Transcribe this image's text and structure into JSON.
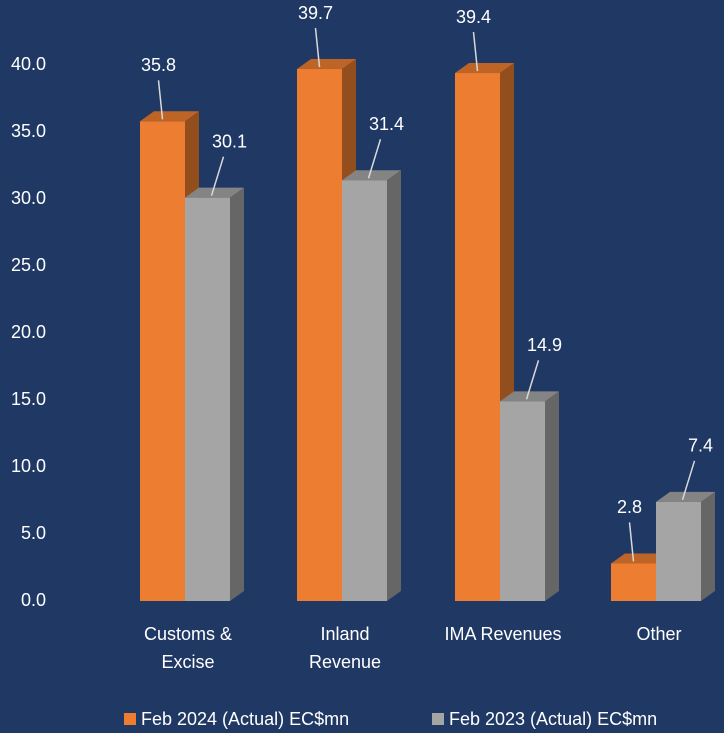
{
  "chart_data": {
    "type": "bar3d",
    "categories": [
      "Customs & Excise",
      "Inland Revenue",
      "IMA Revenues",
      "Other"
    ],
    "series": [
      {
        "name": "Feb 2024 (Actual) EC$mn",
        "color": "#ed7d31",
        "values": [
          35.8,
          39.7,
          39.4,
          2.8
        ]
      },
      {
        "name": "Feb 2023 (Actual) EC$mn",
        "color": "#a5a5a5",
        "values": [
          30.1,
          31.4,
          14.9,
          7.4
        ]
      }
    ],
    "ylim": [
      0,
      40
    ],
    "yticks": [
      {
        "value": 0,
        "label": "0.0"
      },
      {
        "value": 5,
        "label": "5.0"
      },
      {
        "value": 10,
        "label": "10.0"
      },
      {
        "value": 15,
        "label": "15.0"
      },
      {
        "value": 20,
        "label": "20.0"
      },
      {
        "value": 25,
        "label": "25.0"
      },
      {
        "value": 30,
        "label": "30.0"
      },
      {
        "value": 35,
        "label": "35.0"
      },
      {
        "value": 40,
        "label": "40.0"
      }
    ],
    "legend": "bottom"
  }
}
